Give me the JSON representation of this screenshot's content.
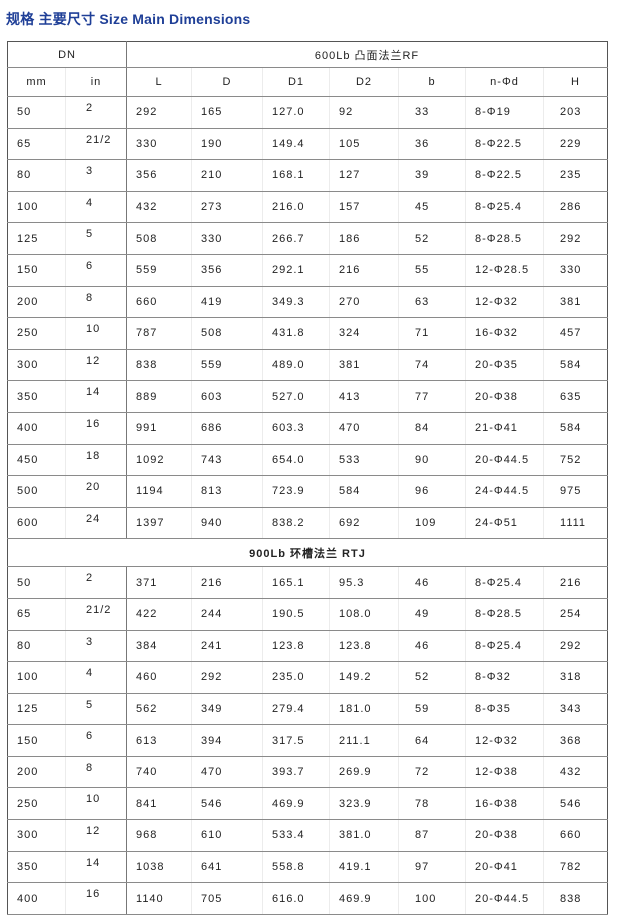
{
  "title": "规格  主要尺寸 Size Main Dimensions",
  "header": {
    "dn": "DN",
    "class_600": "600Lb 凸面法兰RF",
    "columns": [
      "mm",
      "in",
      "L",
      "D",
      "D1",
      "D2",
      "b",
      "n-Φd",
      "H"
    ]
  },
  "section_900": "900Lb  环槽法兰 RTJ",
  "rows_600": [
    [
      "50",
      "2",
      "292",
      "165",
      "127.0",
      "92",
      "33",
      "8-Φ19",
      "203"
    ],
    [
      "65",
      "21/2",
      "330",
      "190",
      "149.4",
      "105",
      "36",
      "8-Φ22.5",
      "229"
    ],
    [
      "80",
      "3",
      "356",
      "210",
      "168.1",
      "127",
      "39",
      "8-Φ22.5",
      "235"
    ],
    [
      "100",
      "4",
      "432",
      "273",
      "216.0",
      "157",
      "45",
      "8-Φ25.4",
      "286"
    ],
    [
      "125",
      "5",
      "508",
      "330",
      "266.7",
      "186",
      "52",
      "8-Φ28.5",
      "292"
    ],
    [
      "150",
      "6",
      "559",
      "356",
      "292.1",
      "216",
      "55",
      "12-Φ28.5",
      "330"
    ],
    [
      "200",
      "8",
      "660",
      "419",
      "349.3",
      "270",
      "63",
      "12-Φ32",
      "381"
    ],
    [
      "250",
      "10",
      "787",
      "508",
      "431.8",
      "324",
      "71",
      "16-Φ32",
      "457"
    ],
    [
      "300",
      "12",
      "838",
      "559",
      "489.0",
      "381",
      "74",
      "20-Φ35",
      "584"
    ],
    [
      "350",
      "14",
      "889",
      "603",
      "527.0",
      "413",
      "77",
      "20-Φ38",
      "635"
    ],
    [
      "400",
      "16",
      "991",
      "686",
      "603.3",
      "470",
      "84",
      "21-Φ41",
      "584"
    ],
    [
      "450",
      "18",
      "1092",
      "743",
      "654.0",
      "533",
      "90",
      "20-Φ44.5",
      "752"
    ],
    [
      "500",
      "20",
      "1194",
      "813",
      "723.9",
      "584",
      "96",
      "24-Φ44.5",
      "975"
    ],
    [
      "600",
      "24",
      "1397",
      "940",
      "838.2",
      "692",
      "109",
      "24-Φ51",
      "1111"
    ]
  ],
  "rows_900": [
    [
      "50",
      "2",
      "371",
      "216",
      "165.1",
      "95.3",
      "46",
      "8-Φ25.4",
      "216"
    ],
    [
      "65",
      "21/2",
      "422",
      "244",
      "190.5",
      "108.0",
      "49",
      "8-Φ28.5",
      "254"
    ],
    [
      "80",
      "3",
      "384",
      "241",
      "123.8",
      "123.8",
      "46",
      "8-Φ25.4",
      "292"
    ],
    [
      "100",
      "4",
      "460",
      "292",
      "235.0",
      "149.2",
      "52",
      "8-Φ32",
      "318"
    ],
    [
      "125",
      "5",
      "562",
      "349",
      "279.4",
      "181.0",
      "59",
      "8-Φ35",
      "343"
    ],
    [
      "150",
      "6",
      "613",
      "394",
      "317.5",
      "211.1",
      "64",
      "12-Φ32",
      "368"
    ],
    [
      "200",
      "8",
      "740",
      "470",
      "393.7",
      "269.9",
      "72",
      "12-Φ38",
      "432"
    ],
    [
      "250",
      "10",
      "841",
      "546",
      "469.9",
      "323.9",
      "78",
      "16-Φ38",
      "546"
    ],
    [
      "300",
      "12",
      "968",
      "610",
      "533.4",
      "381.0",
      "87",
      "20-Φ38",
      "660"
    ],
    [
      "350",
      "14",
      "1038",
      "641",
      "558.8",
      "419.1",
      "97",
      "20-Φ41",
      "782"
    ],
    [
      "400",
      "16",
      "1140",
      "705",
      "616.0",
      "469.9",
      "100",
      "20-Φ44.5",
      "838"
    ]
  ]
}
